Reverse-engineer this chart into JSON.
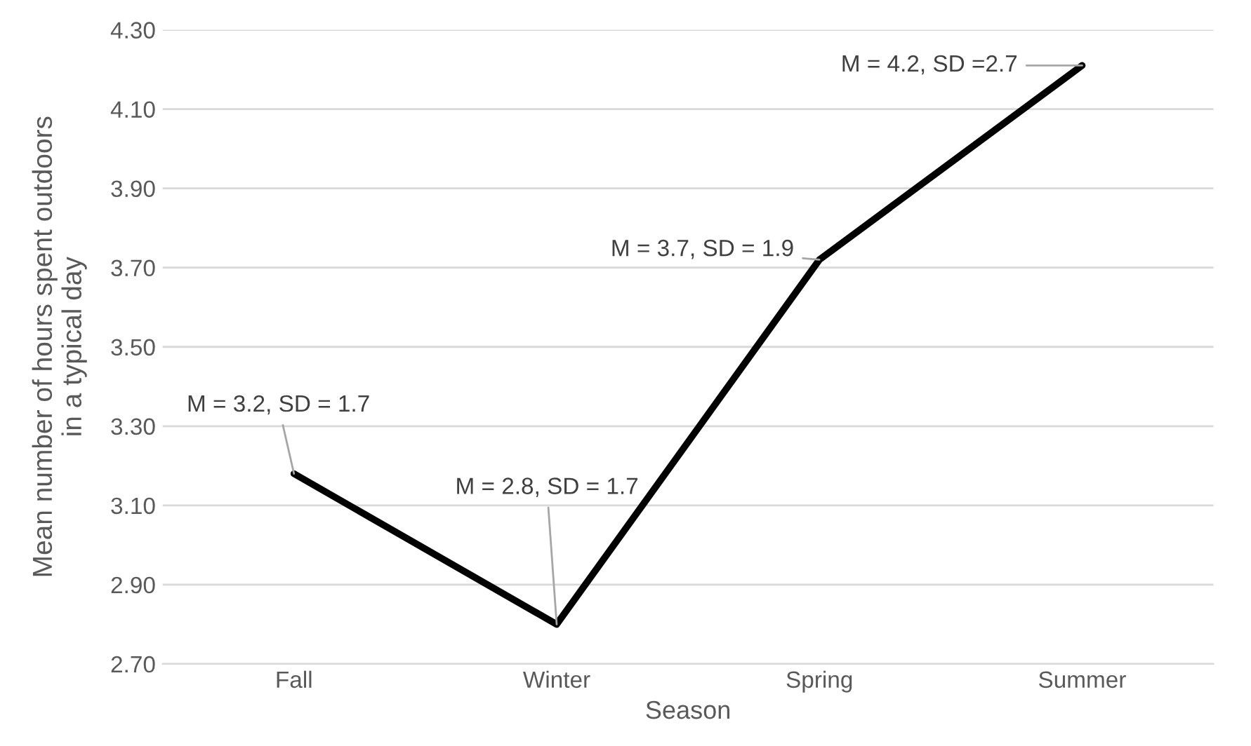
{
  "chart_data": {
    "type": "line",
    "xlabel": "Season",
    "ylabel": "Mean number of hours spent outdoors\nin a typical day",
    "categories": [
      "Fall",
      "Winter",
      "Spring",
      "Summer"
    ],
    "series": [
      {
        "color": "#000000",
        "values": [
          3.18,
          2.8,
          3.72,
          4.21
        ]
      }
    ],
    "ylim": [
      2.7,
      4.3
    ],
    "yticks": [
      {
        "value": 2.7,
        "label": "2.70"
      },
      {
        "value": 2.9,
        "label": "2.90"
      },
      {
        "value": 3.1,
        "label": "3.10"
      },
      {
        "value": 3.3,
        "label": "3.30"
      },
      {
        "value": 3.5,
        "label": "3.50"
      },
      {
        "value": 3.7,
        "label": "3.70"
      },
      {
        "value": 3.9,
        "label": "3.90"
      },
      {
        "value": 4.1,
        "label": "4.10"
      },
      {
        "value": 4.3,
        "label": "4.30"
      }
    ],
    "grid": "y",
    "marker": "none",
    "line_style": "solid",
    "annotations": [
      {
        "text": "M = 3.2, SD = 1.7",
        "x": "Fall",
        "y": 3.18
      },
      {
        "text": "M = 2.8, SD = 1.7",
        "x": "Winter",
        "y": 2.8
      },
      {
        "text": "M = 3.7, SD = 1.9",
        "x": "Spring",
        "y": 3.72
      },
      {
        "text": "M = 4.2, SD =2.7",
        "x": "Summer",
        "y": 4.21
      }
    ]
  }
}
